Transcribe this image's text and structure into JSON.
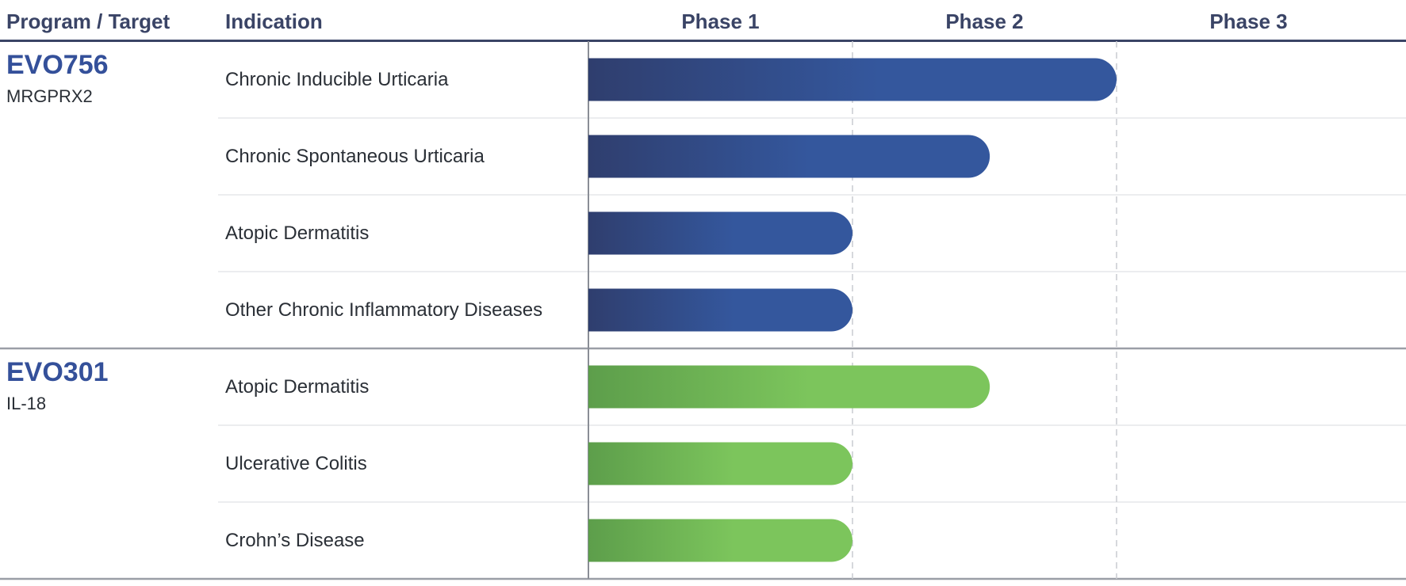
{
  "header": {
    "program_target": "Program / Target",
    "indication": "Indication"
  },
  "colors": {
    "header_text": "#3a4466",
    "program_blue": "#34509a",
    "bar_blue_start": "#2f3e6e",
    "bar_blue_end": "#34579d",
    "bar_green_start": "#5d9e4b",
    "bar_green_end": "#7cc55c"
  },
  "chart_data": {
    "type": "bar",
    "orientation": "horizontal",
    "phases": [
      "Phase 1",
      "Phase 2",
      "Phase 3"
    ],
    "xlim": [
      0,
      3
    ],
    "unit": "development phase",
    "programs": [
      {
        "name": "EVO756",
        "target": "MRGPRX2",
        "color": "blue",
        "rows": [
          {
            "indication": "Chronic Inducible Urticaria",
            "progress": 2.0
          },
          {
            "indication": "Chronic Spontaneous Urticaria",
            "progress": 1.52
          },
          {
            "indication": "Atopic Dermatitis",
            "progress": 1.0
          },
          {
            "indication": "Other Chronic Inflammatory Diseases",
            "progress": 1.0
          }
        ]
      },
      {
        "name": "EVO301",
        "target": "IL-18",
        "color": "green",
        "rows": [
          {
            "indication": "Atopic Dermatitis",
            "progress": 1.52
          },
          {
            "indication": "Ulcerative Colitis",
            "progress": 1.0
          },
          {
            "indication": "Crohn’s Disease",
            "progress": 1.0
          }
        ]
      }
    ]
  }
}
